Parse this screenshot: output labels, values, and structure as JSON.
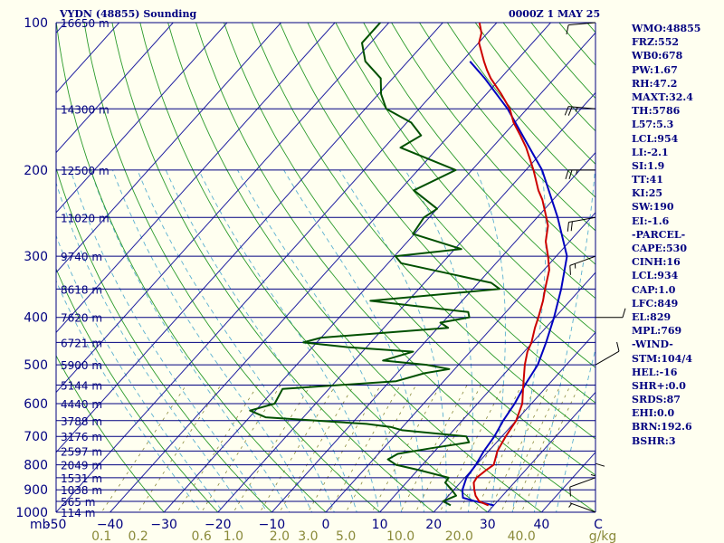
{
  "header": {
    "station": "VYDN (48855) Sounding",
    "time": "0000Z  1 MAY 25"
  },
  "side_panel": [
    "WMO:48855",
    "FRZ:552",
    "WB0:678",
    "PW:1.67",
    "RH:47.2",
    "MAXT:32.4",
    "TH:5786",
    "L57:5.3",
    "LCL:954",
    "LI:-2.1",
    "SI:1.9",
    "TT:41",
    "KI:25",
    "SW:190",
    "EI:-1.6",
    "-PARCEL-",
    "CAPE:530",
    "CINH:16",
    "LCL:934",
    "CAP:1.0",
    "LFC:849",
    "EL:829",
    "MPL:769",
    "-WIND-",
    "STM:104/4",
    "HEL:-16",
    "SHR+:0.0",
    "SRDS:87",
    "EHI:0.0",
    "BRN:192.6",
    "BSHR:3"
  ],
  "colors": {
    "isobar": "#000080",
    "isotherm": "#2020a0",
    "dry_adiabat": "#2a9a2a",
    "moist_adiabat": "#5ab0d0",
    "mixing_ratio": "#8a8a3a",
    "temperature": "#cc0000",
    "dewpoint": "#005000",
    "parcel": "#0000c0",
    "wind": "#000000",
    "text": "#000080",
    "mixing_label": "#8a8a3a"
  },
  "chart_data": {
    "type": "skew-t log-p",
    "title": "VYDN (48855) Sounding",
    "valid_time": "0000Z  1 MAY 25",
    "y_axis": {
      "label": "mb",
      "scale": "log",
      "range": [
        1000,
        100
      ]
    },
    "pressure_levels": [
      {
        "p": 100,
        "label": "100",
        "height": "16650 m"
      },
      {
        "p": 150,
        "label": "",
        "height": "14300 m"
      },
      {
        "p": 200,
        "label": "200",
        "height": "12500 m"
      },
      {
        "p": 250,
        "label": "",
        "height": "11020 m"
      },
      {
        "p": 300,
        "label": "300",
        "height": "9740 m"
      },
      {
        "p": 350,
        "label": "",
        "height": "8618 m"
      },
      {
        "p": 400,
        "label": "400",
        "height": "7620 m"
      },
      {
        "p": 450,
        "label": "",
        "height": "6721 m"
      },
      {
        "p": 500,
        "label": "500",
        "height": "5900 m"
      },
      {
        "p": 550,
        "label": "",
        "height": "5144 m"
      },
      {
        "p": 600,
        "label": "600",
        "height": "4440 m"
      },
      {
        "p": 650,
        "label": "",
        "height": "3788 m"
      },
      {
        "p": 700,
        "label": "700",
        "height": "3176 m"
      },
      {
        "p": 750,
        "label": "",
        "height": "2597 m"
      },
      {
        "p": 800,
        "label": "800",
        "height": "2049 m"
      },
      {
        "p": 850,
        "label": "",
        "height": "1531 m"
      },
      {
        "p": 900,
        "label": "900",
        "height": "1038 m"
      },
      {
        "p": 950,
        "label": "",
        "height": "565 m"
      },
      {
        "p": 1000,
        "label": "1000",
        "height": "114 m"
      }
    ],
    "x_axis": {
      "label": "C",
      "range": [
        -50,
        50
      ],
      "ticks": [
        -50,
        -40,
        -30,
        -20,
        -10,
        0,
        10,
        20,
        30,
        40
      ],
      "tick_labels": [
        "-50",
        "−40",
        "−30",
        "−20",
        "−10",
        "0",
        "10",
        "20",
        "30",
        "40"
      ]
    },
    "mixing_ratio_axis": {
      "unit": "g/kg",
      "ticks": [
        0.1,
        0.2,
        0.6,
        1.0,
        2.0,
        3.0,
        5.0,
        10.0,
        20.0,
        40.0
      ],
      "tick_labels": [
        "0.1",
        "0.2",
        "0.6",
        "1.0",
        "2.0",
        "3.0",
        "5.0",
        "10.0",
        "20.0",
        "40.0"
      ]
    },
    "series": [
      {
        "name": "temperature",
        "points": [
          [
            968,
            29
          ],
          [
            950,
            26.6
          ],
          [
            925,
            25
          ],
          [
            900,
            23.8
          ],
          [
            870,
            22.5
          ],
          [
            850,
            22.2
          ],
          [
            820,
            22.7
          ],
          [
            800,
            23.2
          ],
          [
            780,
            22.6
          ],
          [
            750,
            21.6
          ],
          [
            700,
            20.7
          ],
          [
            650,
            20
          ],
          [
            600,
            18.3
          ],
          [
            550,
            15.4
          ],
          [
            500,
            12.3
          ],
          [
            470,
            10.6
          ],
          [
            450,
            9.8
          ],
          [
            420,
            8
          ],
          [
            400,
            6.9
          ],
          [
            370,
            5
          ],
          [
            350,
            3.4
          ],
          [
            320,
            1
          ],
          [
            300,
            -1.5
          ],
          [
            280,
            -4.4
          ],
          [
            260,
            -6.6
          ],
          [
            250,
            -8.3
          ],
          [
            230,
            -12
          ],
          [
            220,
            -14.3
          ],
          [
            200,
            -18.6
          ],
          [
            180,
            -23.7
          ],
          [
            170,
            -26.8
          ],
          [
            160,
            -30.2
          ],
          [
            150,
            -33.2
          ],
          [
            140,
            -37.2
          ],
          [
            130,
            -41.8
          ],
          [
            125,
            -43.9
          ],
          [
            120,
            -45.9
          ],
          [
            110,
            -49.9
          ],
          [
            105,
            -51.1
          ],
          [
            100,
            -53.2
          ]
        ]
      },
      {
        "name": "dewpoint",
        "points": [
          [
            968,
            22
          ],
          [
            950,
            19.9
          ],
          [
            925,
            21.4
          ],
          [
            900,
            19.6
          ],
          [
            870,
            17.2
          ],
          [
            850,
            17
          ],
          [
            820,
            10.2
          ],
          [
            800,
            5.1
          ],
          [
            780,
            2.7
          ],
          [
            760,
            3.6
          ],
          [
            740,
            8.8
          ],
          [
            720,
            14.9
          ],
          [
            700,
            13.4
          ],
          [
            680,
            0.5
          ],
          [
            670,
            -2.1
          ],
          [
            660,
            -7.2
          ],
          [
            640,
            -27
          ],
          [
            620,
            -31
          ],
          [
            600,
            -27.6
          ],
          [
            560,
            -28.6
          ],
          [
            540,
            -8.8
          ],
          [
            520,
            -4.9
          ],
          [
            510,
            -1
          ],
          [
            500,
            -5.9
          ],
          [
            490,
            -14.7
          ],
          [
            470,
            -10.6
          ],
          [
            460,
            -23.5
          ],
          [
            450,
            -32.5
          ],
          [
            440,
            -30
          ],
          [
            420,
            -8.1
          ],
          [
            410,
            -10.4
          ],
          [
            400,
            -5.9
          ],
          [
            390,
            -7
          ],
          [
            370,
            -27
          ],
          [
            350,
            -5
          ],
          [
            340,
            -7.6
          ],
          [
            310,
            -27.6
          ],
          [
            300,
            -29.8
          ],
          [
            290,
            -18.8
          ],
          [
            270,
            -30.3
          ],
          [
            250,
            -31
          ],
          [
            240,
            -30
          ],
          [
            220,
            -37.4
          ],
          [
            200,
            -33
          ],
          [
            180,
            -47
          ],
          [
            170,
            -45.2
          ],
          [
            160,
            -49.2
          ],
          [
            150,
            -56.1
          ],
          [
            140,
            -59.5
          ],
          [
            130,
            -62.2
          ],
          [
            120,
            -67.9
          ],
          [
            110,
            -71.6
          ],
          [
            100,
            -71.6
          ]
        ]
      },
      {
        "name": "parcel",
        "points": [
          [
            968,
            30
          ],
          [
            950,
            25.9
          ],
          [
            934,
            23
          ],
          [
            900,
            21.6
          ],
          [
            850,
            20.3
          ],
          [
            800,
            19.9
          ],
          [
            750,
            19.1
          ],
          [
            700,
            18.6
          ],
          [
            650,
            17.6
          ],
          [
            600,
            16.9
          ],
          [
            550,
            15.7
          ],
          [
            500,
            14.7
          ],
          [
            450,
            12.5
          ],
          [
            400,
            9.8
          ],
          [
            350,
            6.4
          ],
          [
            300,
            2
          ],
          [
            250,
            -6.2
          ],
          [
            200,
            -17
          ],
          [
            150,
            -33.6
          ],
          [
            130,
            -42.9
          ],
          [
            120,
            -48.5
          ]
        ]
      }
    ],
    "wind_barbs": [
      {
        "p": 1000,
        "direction": 290,
        "speed_kt": 5
      },
      {
        "p": 950,
        "direction": 360,
        "speed_kt": 5
      },
      {
        "p": 850,
        "direction": 250,
        "speed_kt": 10
      },
      {
        "p": 700,
        "direction": 180,
        "speed_kt": 10
      },
      {
        "p": 500,
        "direction": 60,
        "speed_kt": 10
      },
      {
        "p": 400,
        "direction": 90,
        "speed_kt": 10
      },
      {
        "p": 300,
        "direction": 250,
        "speed_kt": 15
      },
      {
        "p": 250,
        "direction": 260,
        "speed_kt": 20
      },
      {
        "p": 200,
        "direction": 270,
        "speed_kt": 25
      },
      {
        "p": 150,
        "direction": 275,
        "speed_kt": 25
      },
      {
        "p": 100,
        "direction": 265,
        "speed_kt": 10
      }
    ]
  }
}
